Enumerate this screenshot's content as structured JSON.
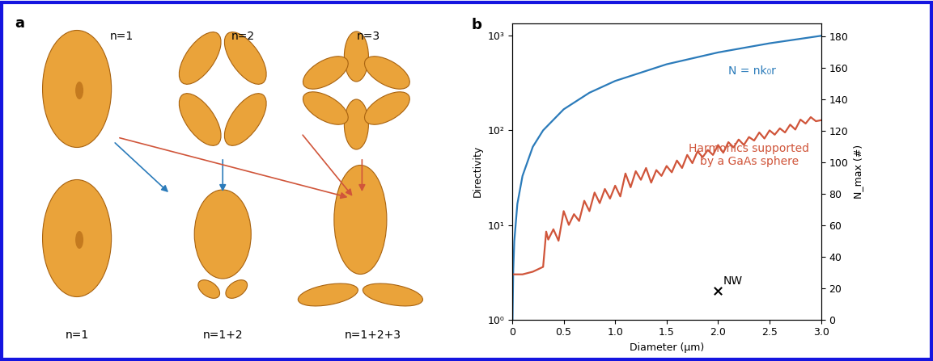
{
  "diagram": {
    "panel_label": "a",
    "top_labels": [
      "n=1",
      "n=2",
      "n=3"
    ],
    "bottom_labels": [
      "n=1",
      "n=1+2",
      "n=1+2+3"
    ]
  },
  "chart_data": {
    "type": "line",
    "panel_label": "b",
    "x_label": "Diameter (µm)",
    "y_label": "Directivity",
    "y2_label": "N_max (#)",
    "log": "y",
    "xlim": [
      0,
      3.0
    ],
    "xticks": [
      0,
      0.5,
      1.0,
      1.5,
      2.0,
      2.5,
      3.0
    ],
    "ylim": [
      1,
      1350
    ],
    "yticks": [
      {
        "value": 1,
        "label": "10⁰"
      },
      {
        "value": 10,
        "label": "10¹"
      },
      {
        "value": 100,
        "label": "10²"
      },
      {
        "value": 1000,
        "label": "10³"
      }
    ],
    "y2lim": [
      0,
      188
    ],
    "y2ticks": [
      0,
      20,
      40,
      60,
      80,
      100,
      120,
      140,
      160,
      180
    ],
    "series": [
      {
        "name": "N = nk₀r",
        "color": "#2b7bba",
        "type": "line",
        "x": [
          0.003,
          0.01,
          0.02,
          0.05,
          0.1,
          0.2,
          0.3,
          0.5,
          0.75,
          1.0,
          1.5,
          2.0,
          2.5,
          3.0
        ],
        "values": [
          1,
          3.3,
          6.7,
          16.7,
          33,
          67,
          100,
          167,
          250,
          333,
          500,
          667,
          833,
          1000
        ]
      },
      {
        "name": "Harmonics supported\nby a GaAs sphere",
        "color": "#d0553a",
        "type": "line",
        "x": [
          0,
          0.1,
          0.2,
          0.3,
          0.33,
          0.35,
          0.4,
          0.45,
          0.5,
          0.55,
          0.6,
          0.65,
          0.7,
          0.75,
          0.8,
          0.85,
          0.9,
          0.95,
          1.0,
          1.05,
          1.1,
          1.15,
          1.2,
          1.25,
          1.3,
          1.35,
          1.4,
          1.45,
          1.5,
          1.55,
          1.6,
          1.65,
          1.7,
          1.75,
          1.8,
          1.85,
          1.9,
          1.95,
          2.0,
          2.05,
          2.1,
          2.15,
          2.2,
          2.25,
          2.3,
          2.35,
          2.4,
          2.45,
          2.5,
          2.55,
          2.6,
          2.65,
          2.7,
          2.75,
          2.8,
          2.85,
          2.9,
          2.95,
          3.0
        ],
        "values": [
          3.0,
          3.0,
          3.2,
          3.6,
          8.5,
          7.0,
          9.0,
          6.8,
          14,
          10,
          13,
          11,
          18,
          14,
          22,
          17,
          24,
          19,
          26,
          20,
          35,
          25,
          37,
          30,
          40,
          28,
          38,
          33,
          42,
          36,
          48,
          40,
          55,
          45,
          60,
          52,
          62,
          55,
          70,
          58,
          75,
          66,
          80,
          70,
          85,
          78,
          95,
          82,
          100,
          90,
          105,
          95,
          115,
          102,
          130,
          118,
          138,
          125,
          128
        ]
      },
      {
        "name": "NW",
        "color": "#000000",
        "type": "scatter",
        "marker": "x",
        "x": [
          2.0
        ],
        "values": [
          2.0
        ]
      }
    ]
  }
}
